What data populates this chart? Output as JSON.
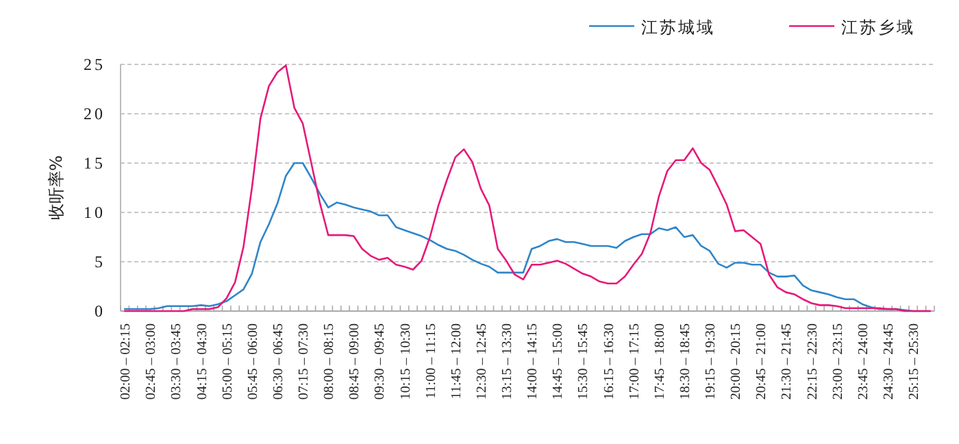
{
  "chart_data": {
    "type": "line",
    "ylabel": "收听率%",
    "categories": [
      "02:00 – 02:15",
      null,
      null,
      "02:45 – 03:00",
      null,
      null,
      "03:30 – 03:45",
      null,
      null,
      "04:15 – 04:30",
      null,
      null,
      "05:00 – 05:15",
      null,
      null,
      "05:45 – 06:00",
      null,
      null,
      "06:30 – 06:45",
      null,
      null,
      "07:15 – 07:30",
      null,
      null,
      "08:00 – 08:15",
      null,
      null,
      "08:45 – 09:00",
      null,
      null,
      "09:30 – 09:45",
      null,
      null,
      "10:15 – 10:30",
      null,
      null,
      "11:00 – 11:15",
      null,
      null,
      "11:45 – 12:00",
      null,
      null,
      "12:30 – 12:45",
      null,
      null,
      "13:15 – 13:30",
      null,
      null,
      "14:00 – 14:15",
      null,
      null,
      "14:45 – 15:00",
      null,
      null,
      "15:30 – 15:45",
      null,
      null,
      "16:15 – 16:30",
      null,
      null,
      "17:00 – 17:15",
      null,
      null,
      "17:45 – 18:00",
      null,
      null,
      "18:30 – 18:45",
      null,
      null,
      "19:15 – 19:30",
      null,
      null,
      "20:00 – 20:15",
      null,
      null,
      "20:45 – 21:00",
      null,
      null,
      "21:30 – 21:45",
      null,
      null,
      "22:15 – 22:30",
      null,
      null,
      "23:00 – 23:15",
      null,
      null,
      "23:45 – 24:00",
      null,
      null,
      "24:30 – 24:45",
      null,
      null,
      "25:15 – 25:30",
      null,
      null
    ],
    "series": [
      {
        "name": "江苏城域",
        "color": "#2e86c9",
        "values": [
          0.2,
          0.2,
          0.2,
          0.2,
          0.3,
          0.5,
          0.5,
          0.5,
          0.5,
          0.6,
          0.5,
          0.7,
          1.0,
          1.6,
          2.2,
          3.8,
          7.0,
          8.8,
          10.9,
          13.7,
          15.0,
          15.0,
          13.5,
          11.9,
          10.5,
          11.0,
          10.8,
          10.5,
          10.3,
          10.1,
          9.7,
          9.7,
          8.5,
          8.2,
          7.9,
          7.6,
          7.2,
          6.7,
          6.3,
          6.1,
          5.7,
          5.2,
          4.8,
          4.5,
          3.9,
          3.9,
          3.9,
          3.9,
          6.3,
          6.6,
          7.1,
          7.3,
          7.0,
          7.0,
          6.8,
          6.6,
          6.6,
          6.6,
          6.4,
          7.1,
          7.5,
          7.8,
          7.8,
          8.4,
          8.2,
          8.5,
          7.5,
          7.7,
          6.6,
          6.1,
          4.8,
          4.4,
          4.9,
          4.9,
          4.7,
          4.7,
          3.9,
          3.5,
          3.5,
          3.6,
          2.6,
          2.1,
          1.9,
          1.7,
          1.4,
          1.2,
          1.2,
          0.7,
          0.4,
          0.2,
          0.2,
          0.2,
          0.1,
          0,
          0,
          0
        ]
      },
      {
        "name": "江苏乡域",
        "color": "#e6197a",
        "values": [
          0,
          0,
          0,
          0,
          0,
          0,
          0,
          0,
          0.2,
          0.2,
          0.2,
          0.4,
          1.3,
          2.9,
          6.5,
          12.5,
          19.5,
          22.8,
          24.2,
          24.9,
          20.6,
          19.0,
          15.0,
          11.0,
          7.7,
          7.7,
          7.7,
          7.6,
          6.3,
          5.6,
          5.2,
          5.4,
          4.7,
          4.5,
          4.2,
          5.1,
          7.5,
          10.7,
          13.3,
          15.6,
          16.4,
          15.1,
          12.4,
          10.7,
          6.3,
          5.1,
          3.7,
          3.2,
          4.7,
          4.7,
          4.9,
          5.1,
          4.8,
          4.3,
          3.8,
          3.5,
          3.0,
          2.8,
          2.8,
          3.5,
          4.7,
          5.8,
          7.9,
          11.6,
          14.2,
          15.3,
          15.3,
          16.5,
          15.0,
          14.3,
          12.6,
          10.8,
          8.1,
          8.2,
          7.5,
          6.8,
          3.7,
          2.4,
          1.9,
          1.7,
          1.2,
          0.8,
          0.6,
          0.6,
          0.5,
          0.3,
          0.3,
          0.3,
          0.3,
          0.3,
          0.2,
          0.2,
          0,
          0,
          0,
          0
        ]
      }
    ],
    "ylim": [
      0,
      25
    ],
    "yticks": [
      0,
      5,
      10,
      15,
      20,
      25
    ],
    "grid": "y",
    "legend": "top right"
  }
}
